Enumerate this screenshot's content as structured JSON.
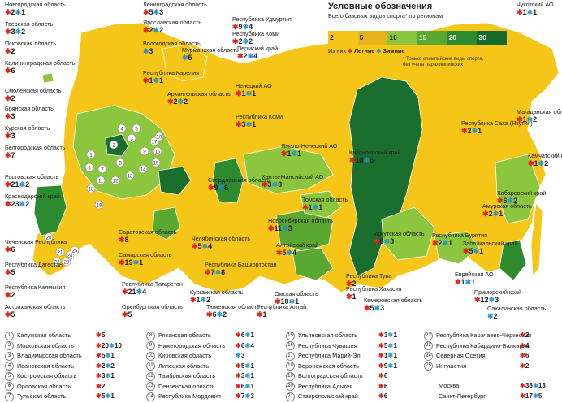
{
  "legend": {
    "title": "Условные обозначения",
    "subtitle": "Всего базовых видов спорта* по регионам",
    "scale_labels": [
      "2",
      "5",
      "10",
      "15",
      "20",
      "30"
    ],
    "scale_colors": [
      "#f7c51a",
      "#e8b21a",
      "#8cc63f",
      "#5aa832",
      "#2e8a2e",
      "#166b2a"
    ],
    "of_them": "Из них",
    "summer": "Летние",
    "winter": "Зимние",
    "note": "* Только олимпийские виды спорта, без учета паралимпийских"
  },
  "symbols": {
    "summer_icon": "red-star-icon",
    "winter_icon": "blue-snowflake-icon",
    "summer_color": "#e2231a",
    "winter_color": "#1f8fd0"
  },
  "regions": [
    {
      "name": "Новгородская область",
      "s": "2",
      "w": "1"
    },
    {
      "name": "Ленинградская область",
      "s": "5",
      "w": "3"
    },
    {
      "name": "Тверская область",
      "s": "3",
      "w": "2"
    },
    {
      "name": "Ярославская область",
      "s": "2",
      "w": "2"
    },
    {
      "name": "Псковская область",
      "s": "2",
      "w": ""
    },
    {
      "name": "Вологодская область",
      "s": "",
      "w": "3"
    },
    {
      "name": "Калининградская область",
      "s": "6",
      "w": ""
    },
    {
      "name": "Мурманская область",
      "s": "",
      "w": "5"
    },
    {
      "name": "Республика Удмуртия",
      "s": "9",
      "w": "4"
    },
    {
      "name": "Республика Коми",
      "s": "2",
      "w": "2"
    },
    {
      "name": "Пермский край",
      "s": "2",
      "w": "4"
    },
    {
      "name": "Республика Карелия",
      "s": "1",
      "w": "1"
    },
    {
      "name": "Архангельская область",
      "s": "2",
      "w": "2"
    },
    {
      "name": "Ненецкий АО",
      "s": "1",
      "w": "1"
    },
    {
      "name": "Республика Коми",
      "s": "3",
      "w": "1"
    },
    {
      "name": "Смоленская область",
      "s": "2",
      "w": ""
    },
    {
      "name": "Брянская область",
      "s": "3",
      "w": ""
    },
    {
      "name": "Курская область",
      "s": "3",
      "w": ""
    },
    {
      "name": "Белгородская область",
      "s": "7",
      "w": ""
    },
    {
      "name": "Ростовская область",
      "s": "21",
      "w": "2"
    },
    {
      "name": "Краснодарский край",
      "s": "23",
      "w": "2"
    },
    {
      "name": "Ямало-Ненецкий АО",
      "s": "1",
      "w": "1"
    },
    {
      "name": "Ханты-Мансийский АО",
      "s": "3",
      "w": "3"
    },
    {
      "name": "Красноярский край",
      "s": "18",
      "w": "6"
    },
    {
      "name": "Томская область",
      "s": "1",
      "w": "1"
    },
    {
      "name": "Свердловская область",
      "s": "9",
      "w": "6"
    },
    {
      "name": "Новосибирская область",
      "s": "11",
      "w": "3"
    },
    {
      "name": "Чукотский АО",
      "s": "1",
      "w": "1"
    },
    {
      "name": "Магаданская область",
      "s": "1",
      "w": "2"
    },
    {
      "name": "Республика Саха (Якутия)",
      "s": "2",
      "w": "1"
    },
    {
      "name": "Камчатский край",
      "s": "1",
      "w": "2"
    },
    {
      "name": "Хабаровский край",
      "s": "6",
      "w": "2"
    },
    {
      "name": "Амурская область",
      "s": "2",
      "w": "1"
    },
    {
      "name": "Республика Бурятия",
      "s": "2",
      "w": "1"
    },
    {
      "name": "Забайкальский край",
      "s": "5",
      "w": "1"
    },
    {
      "name": "Иркутская область",
      "s": "6",
      "w": "3"
    },
    {
      "name": "Алтайский край",
      "s": "5",
      "w": "4"
    },
    {
      "name": "Еврейская АО",
      "s": "1",
      "w": "1"
    },
    {
      "name": "Приморский край",
      "s": "12",
      "w": "3"
    },
    {
      "name": "Сахалинская область",
      "s": "",
      "w": "2"
    },
    {
      "name": "Республика Тува",
      "s": "2",
      "w": ""
    },
    {
      "name": "Республика Хакасия",
      "s": "1",
      "w": ""
    },
    {
      "name": "Кемеровская область",
      "s": "5",
      "w": "3"
    },
    {
      "name": "Омская область",
      "s": "10",
      "w": "1"
    },
    {
      "name": "Республика Алтай",
      "s": "1",
      "w": ""
    },
    {
      "name": "Тюменская область",
      "s": "6",
      "w": "2"
    },
    {
      "name": "Курганская область",
      "s": "1",
      "w": "2"
    },
    {
      "name": "Челябинская область",
      "s": "5",
      "w": "4"
    },
    {
      "name": "Республика Башкортостан",
      "s": "7",
      "w": "8"
    },
    {
      "name": "Республика Татарстан",
      "s": "21",
      "w": "4"
    },
    {
      "name": "Оренбургская область",
      "s": "5",
      "w": ""
    },
    {
      "name": "Самарская область",
      "s": "19",
      "w": "1"
    },
    {
      "name": "Саратовская область",
      "s": "8",
      "w": ""
    },
    {
      "name": "Чеченская Республика",
      "s": "6",
      "w": ""
    },
    {
      "name": "Республика Дагестан",
      "s": "5",
      "w": ""
    },
    {
      "name": "Республика Калмыкия",
      "s": "2",
      "w": ""
    },
    {
      "name": "Астраханская область",
      "s": "5",
      "w": ""
    }
  ],
  "central_list": [
    {
      "num": "1",
      "name": "Калужская область",
      "s": "5",
      "w": ""
    },
    {
      "num": "2",
      "name": "Московская область",
      "s": "20",
      "w": "10"
    },
    {
      "num": "3",
      "name": "Владимирская область",
      "s": "5",
      "w": "1"
    },
    {
      "num": "4",
      "name": "Ивановская область",
      "s": "2",
      "w": "2"
    },
    {
      "num": "5",
      "name": "Костромская область",
      "s": "3",
      "w": "1"
    },
    {
      "num": "6",
      "name": "Орловская область",
      "s": "2",
      "w": ""
    },
    {
      "num": "7",
      "name": "Тульская область",
      "s": "5",
      "w": "1"
    },
    {
      "num": "8",
      "name": "Рязанская область",
      "s": "6",
      "w": "1"
    },
    {
      "num": "9",
      "name": "Нижегородская область",
      "s": "6",
      "w": "4"
    },
    {
      "num": "10",
      "name": "Кировская область",
      "s": "",
      "w": "3"
    },
    {
      "num": "11",
      "name": "Липецкая область",
      "s": "5",
      "w": "1"
    },
    {
      "num": "12",
      "name": "Тамбовская область",
      "s": "3",
      "w": "1"
    },
    {
      "num": "13",
      "name": "Пензенская область",
      "s": "6",
      "w": "1"
    },
    {
      "num": "14",
      "name": "Республика Мордовия",
      "s": "7",
      "w": "3"
    },
    {
      "num": "15",
      "name": "Ульяновская область",
      "s": "3",
      "w": "1"
    },
    {
      "num": "16",
      "name": "Республика Чувашия",
      "s": "5",
      "w": "1"
    },
    {
      "num": "17",
      "name": "Республика Марий-Эл",
      "s": "1",
      "w": "1"
    },
    {
      "num": "18",
      "name": "Воронежская область",
      "s": "9",
      "w": "1"
    },
    {
      "num": "19",
      "name": "Волгоградская область",
      "s": "6",
      "w": ""
    },
    {
      "num": "20",
      "name": "Республика Адыгея",
      "s": "6",
      "w": ""
    },
    {
      "num": "21",
      "name": "Ставропольский край",
      "s": "6",
      "w": ""
    },
    {
      "num": "22",
      "name": "Республика Карачаево-Черкессия",
      "s": "2",
      "w": ""
    },
    {
      "num": "23",
      "name": "Республика Кабардино-Балкария",
      "s": "4",
      "w": ""
    },
    {
      "num": "24",
      "name": "Северная Осетия",
      "s": "6",
      "w": ""
    },
    {
      "num": "25",
      "name": "Ингушетия",
      "s": "2",
      "w": ""
    }
  ],
  "cities": [
    {
      "name": "Москва",
      "s": "38",
      "w": "13"
    },
    {
      "name": "Санкт-Петербург",
      "s": "17",
      "w": "5"
    }
  ]
}
